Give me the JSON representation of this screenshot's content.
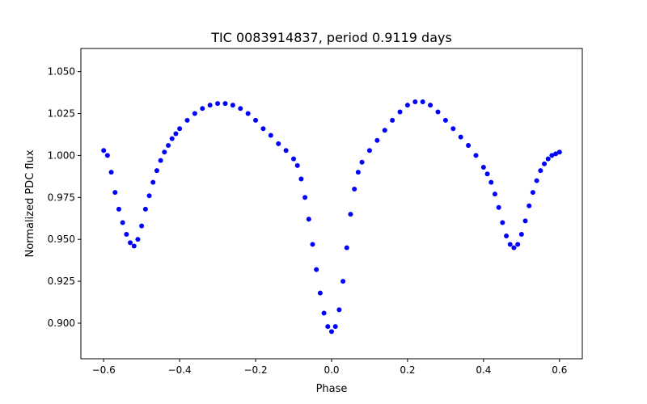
{
  "chart_data": {
    "type": "scatter",
    "title": "TIC 0083914837, period 0.9119 days",
    "xlabel": "Phase",
    "ylabel": "Normalized PDC flux",
    "xlim": [
      -0.66,
      0.66
    ],
    "ylim": [
      0.8788,
      1.0638
    ],
    "xticks": [
      -0.6,
      -0.4,
      -0.2,
      0.0,
      0.2,
      0.4,
      0.6
    ],
    "xtick_labels": [
      "−0.6",
      "−0.4",
      "−0.2",
      "0.0",
      "0.2",
      "0.4",
      "0.6"
    ],
    "yticks": [
      0.9,
      0.925,
      0.95,
      0.975,
      1.0,
      1.025,
      1.05
    ],
    "ytick_labels": [
      "0.900",
      "0.925",
      "0.950",
      "0.975",
      "1.000",
      "1.025",
      "1.050"
    ],
    "marker_color": "#0000ff",
    "grid": false,
    "series": [
      {
        "name": "PDC flux",
        "x": [
          -0.6,
          -0.59,
          -0.58,
          -0.57,
          -0.56,
          -0.55,
          -0.54,
          -0.53,
          -0.52,
          -0.51,
          -0.5,
          -0.49,
          -0.48,
          -0.47,
          -0.46,
          -0.45,
          -0.44,
          -0.43,
          -0.42,
          -0.41,
          -0.4,
          -0.38,
          -0.36,
          -0.34,
          -0.32,
          -0.3,
          -0.28,
          -0.26,
          -0.24,
          -0.22,
          -0.2,
          -0.18,
          -0.16,
          -0.14,
          -0.12,
          -0.1,
          -0.09,
          -0.08,
          -0.07,
          -0.06,
          -0.05,
          -0.04,
          -0.03,
          -0.02,
          -0.01,
          0.0,
          0.01,
          0.02,
          0.03,
          0.04,
          0.05,
          0.06,
          0.07,
          0.08,
          0.1,
          0.12,
          0.14,
          0.16,
          0.18,
          0.2,
          0.22,
          0.24,
          0.26,
          0.28,
          0.3,
          0.32,
          0.34,
          0.36,
          0.38,
          0.4,
          0.41,
          0.42,
          0.43,
          0.44,
          0.45,
          0.46,
          0.47,
          0.48,
          0.49,
          0.5,
          0.51,
          0.52,
          0.53,
          0.54,
          0.55,
          0.56,
          0.57,
          0.58,
          0.59,
          0.6
        ],
        "y": [
          1.003,
          1.0,
          0.99,
          0.978,
          0.968,
          0.96,
          0.953,
          0.948,
          0.946,
          0.95,
          0.958,
          0.968,
          0.976,
          0.984,
          0.991,
          0.997,
          1.002,
          1.006,
          1.01,
          1.013,
          1.016,
          1.021,
          1.025,
          1.028,
          1.03,
          1.031,
          1.031,
          1.03,
          1.028,
          1.025,
          1.021,
          1.016,
          1.012,
          1.007,
          1.003,
          0.998,
          0.994,
          0.986,
          0.975,
          0.962,
          0.947,
          0.932,
          0.918,
          0.906,
          0.898,
          0.895,
          0.898,
          0.908,
          0.925,
          0.945,
          0.965,
          0.98,
          0.99,
          0.996,
          1.003,
          1.009,
          1.015,
          1.021,
          1.026,
          1.03,
          1.032,
          1.032,
          1.03,
          1.026,
          1.021,
          1.016,
          1.011,
          1.006,
          1.0,
          0.993,
          0.989,
          0.984,
          0.977,
          0.969,
          0.96,
          0.952,
          0.947,
          0.945,
          0.947,
          0.953,
          0.961,
          0.97,
          0.978,
          0.985,
          0.991,
          0.995,
          0.998,
          1.0,
          1.001,
          1.002
        ]
      }
    ]
  }
}
